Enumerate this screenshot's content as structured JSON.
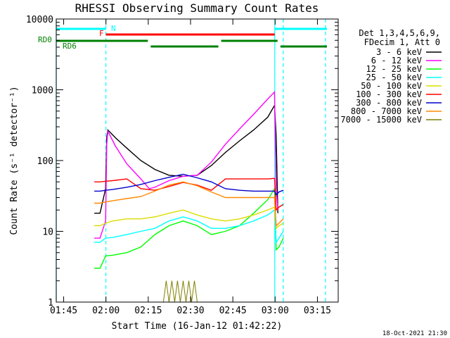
{
  "chart_data": {
    "type": "line",
    "title": "RHESSI Observing Summary Count Rates",
    "xlabel": "Start Time (16-Jan-12 01:42:22)",
    "ylabel": "Count Rate (s⁻¹ detector⁻¹)",
    "x_unit": "minutes since 01:42:22",
    "xlim": [
      0,
      100
    ],
    "ylim": [
      1,
      10000
    ],
    "yscale": "log",
    "x_ticks": [
      {
        "label": "01:45",
        "value": 2.63
      },
      {
        "label": "02:00",
        "value": 17.63
      },
      {
        "label": "02:15",
        "value": 32.63
      },
      {
        "label": "02:30",
        "value": 47.63
      },
      {
        "label": "02:45",
        "value": 62.63
      },
      {
        "label": "03:00",
        "value": 77.63
      },
      {
        "label": "03:15",
        "value": 92.63
      }
    ],
    "y_ticks": [
      {
        "label": "1",
        "value": 1
      },
      {
        "label": "10",
        "value": 10
      },
      {
        "label": "100",
        "value": 100
      },
      {
        "label": "1000",
        "value": 1000
      },
      {
        "label": "10000",
        "value": 10000
      }
    ],
    "legend_header": [
      "Det 1,3,4,5,6,9,",
      "FDecim 1, Att 0"
    ],
    "series": [
      {
        "name": "3 - 6 keV",
        "color": "#000000",
        "x": [
          13.5,
          15.5,
          17.5,
          17.9,
          18.3,
          21,
          25,
          30,
          35,
          40,
          45,
          50,
          55,
          60,
          65,
          70,
          75,
          77.4,
          78,
          78.6
        ],
        "y": [
          18,
          18,
          40,
          210,
          270,
          210,
          150,
          100,
          75,
          62,
          60,
          62,
          85,
          130,
          190,
          270,
          410,
          600,
          220,
          18
        ]
      },
      {
        "name": "6 - 12 keV",
        "color": "#ff00ff",
        "x": [
          13.5,
          15.5,
          17.5,
          17.9,
          18.3,
          21,
          25,
          30,
          33,
          35,
          40,
          45,
          50,
          55,
          60,
          65,
          70,
          75,
          77.4,
          78,
          78.6
        ],
        "y": [
          8,
          8,
          14,
          170,
          260,
          160,
          90,
          55,
          40,
          42,
          52,
          60,
          62,
          95,
          170,
          280,
          450,
          740,
          930,
          40,
          20
        ]
      },
      {
        "name": "12 - 25 keV",
        "color": "#00ff00",
        "x": [
          13.5,
          15.5,
          17.5,
          20,
          25,
          30,
          35,
          40,
          45,
          50,
          55,
          60,
          65,
          70,
          75,
          77.4,
          78,
          79,
          80.5
        ],
        "y": [
          3,
          3,
          4.5,
          4.6,
          5,
          6,
          9,
          12,
          14,
          12,
          9,
          10,
          12,
          18,
          28,
          40,
          5.5,
          6,
          8
        ]
      },
      {
        "name": "25 - 50 keV",
        "color": "#00ffff",
        "x": [
          13.5,
          15.5,
          17.5,
          20,
          25,
          30,
          35,
          40,
          45,
          50,
          55,
          60,
          65,
          70,
          75,
          77.4,
          78,
          79,
          80.5
        ],
        "y": [
          7,
          7,
          8,
          8.2,
          9,
          10,
          11,
          14,
          16,
          14,
          11,
          11,
          12,
          14,
          17,
          20,
          7,
          8,
          10
        ]
      },
      {
        "name": "50 - 100 keV",
        "color": "#dddd00",
        "x": [
          13.5,
          15.5,
          17.5,
          20,
          25,
          30,
          35,
          40,
          45,
          50,
          55,
          60,
          65,
          70,
          75,
          77.4,
          78,
          79,
          80.5
        ],
        "y": [
          12,
          12,
          13,
          14,
          15,
          15,
          16,
          18,
          20,
          17,
          15,
          14,
          15,
          17,
          20,
          22,
          11,
          12,
          13
        ]
      },
      {
        "name": "100 - 300 keV",
        "color": "#ff0000",
        "x": [
          13.5,
          15.5,
          17.5,
          20,
          25,
          30,
          35,
          40,
          45,
          50,
          55,
          60,
          65,
          70,
          75,
          77.4,
          78,
          79,
          80.5
        ],
        "y": [
          50,
          50,
          51,
          52,
          55,
          40,
          38,
          43,
          49,
          45,
          38,
          55,
          55,
          55,
          55,
          56,
          20,
          22,
          24
        ]
      },
      {
        "name": "300 - 800 keV",
        "color": "#0000cc",
        "x": [
          13.5,
          15.5,
          17.5,
          20,
          25,
          30,
          35,
          40,
          45,
          50,
          55,
          60,
          65,
          70,
          75,
          77.4,
          78,
          79,
          80.5
        ],
        "y": [
          37,
          37,
          38,
          39,
          42,
          46,
          52,
          58,
          64,
          57,
          50,
          40,
          38,
          37,
          37,
          37,
          33,
          36,
          38
        ]
      },
      {
        "name": "800 - 7000 keV",
        "color": "#ff8800",
        "x": [
          13.5,
          15.5,
          17.5,
          20,
          25,
          30,
          35,
          40,
          45,
          50,
          55,
          60,
          65,
          70,
          75,
          77.4,
          78,
          79,
          80.5
        ],
        "y": [
          25,
          25,
          26,
          27,
          29,
          31,
          37,
          45,
          50,
          44,
          36,
          30,
          30,
          30,
          30,
          30,
          12,
          13,
          15
        ]
      },
      {
        "name": "7000 - 15000 keV",
        "color": "#808000",
        "x": [
          38,
          39,
          40,
          41,
          42,
          43,
          44,
          45,
          46,
          47,
          48,
          49,
          50
        ],
        "y": [
          1,
          2,
          1,
          2,
          1,
          2,
          1,
          2,
          1,
          2,
          1,
          2,
          1
        ]
      }
    ],
    "flags": [
      {
        "label": "N",
        "color": "#00ffff",
        "segments": [
          [
            0,
            17.6
          ],
          [
            77.5,
            96
          ]
        ]
      },
      {
        "label": "F",
        "color": "#ff0000",
        "segments": [
          [
            17.6,
            77.5
          ]
        ]
      },
      {
        "label": "RD0",
        "color": "#008000",
        "segments": [
          [
            0,
            32.5
          ],
          [
            33.5,
            57.5
          ],
          [
            58.5,
            78.5
          ],
          [
            79.5,
            96
          ]
        ]
      },
      {
        "label": "RD6",
        "color": "#008000",
        "segments": []
      }
    ],
    "vertical_markers": [
      {
        "x": 0,
        "style": "solid",
        "color": "#00ffff"
      },
      {
        "x": 17.6,
        "style": "dashed",
        "color": "#00ffff"
      },
      {
        "x": 77.5,
        "style": "solid",
        "color": "#00ffff"
      },
      {
        "x": 80.5,
        "style": "dashed",
        "color": "#00ffff"
      },
      {
        "x": 95.5,
        "style": "dashed",
        "color": "#00ffff"
      }
    ],
    "timestamp": "18-Oct-2021 21:30"
  }
}
